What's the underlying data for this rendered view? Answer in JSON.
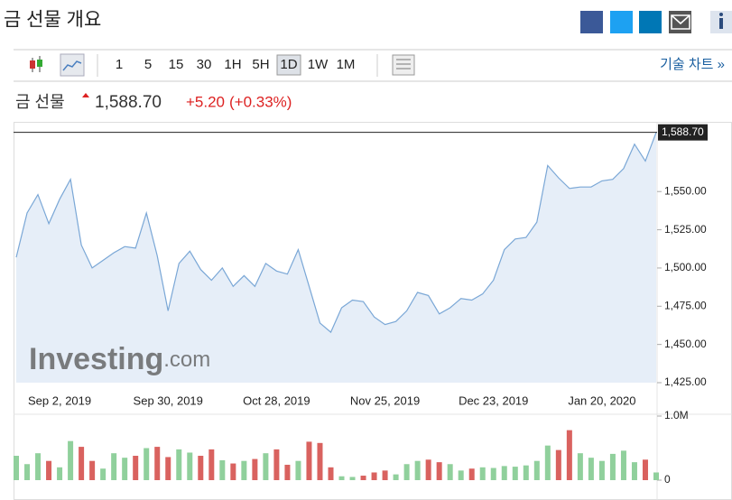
{
  "header": {
    "title": "금 선물 개요"
  },
  "toolbar": {
    "intervals": [
      "1",
      "5",
      "15",
      "30",
      "1H",
      "5H",
      "1D",
      "1W",
      "1M"
    ],
    "selected": "1D",
    "link": "기술 차트 »"
  },
  "quote": {
    "name": "금 선물",
    "price": "1,588.70",
    "change": "+5.20",
    "change_pct": "(+0.33%)"
  },
  "watermark": {
    "brand": "Investing",
    "domain": ".com"
  },
  "chart_data": {
    "type": "line",
    "categories": [
      null,
      null,
      null,
      null,
      "Sep 2, 2019",
      null,
      null,
      null,
      null,
      null,
      null,
      null,
      null,
      null,
      "Sep 30, 2019",
      null,
      null,
      null,
      null,
      null,
      null,
      null,
      null,
      null,
      "Oct 28, 2019",
      null,
      null,
      null,
      null,
      null,
      null,
      null,
      null,
      null,
      "Nov 25, 2019",
      null,
      null,
      null,
      null,
      null,
      null,
      null,
      null,
      null,
      "Dec 23, 2019",
      null,
      null,
      null,
      null,
      null,
      null,
      null,
      null,
      null,
      "Jan 20, 2020",
      null,
      null,
      null,
      null,
      null
    ],
    "values": [
      1507,
      1536,
      1548,
      1529,
      1545,
      1558,
      1515,
      1500,
      1505,
      1510,
      1514,
      1513,
      1536,
      1508,
      1472,
      1503,
      1511,
      1499,
      1492,
      1500,
      1488,
      1495,
      1488,
      1503,
      1498,
      1496,
      1512,
      1488,
      1464,
      1458,
      1474,
      1479,
      1478,
      1468,
      1463,
      1465,
      1472,
      1484,
      1482,
      1470,
      1474,
      1480,
      1479,
      1483,
      1492,
      1512,
      1519,
      1520,
      1530,
      1567,
      1559,
      1552,
      1553,
      1553,
      1557,
      1558,
      1565,
      1581,
      1570,
      1588.7
    ],
    "color": "#7aa7d6",
    "ylim": [
      1425,
      1595
    ],
    "yticks": [
      {
        "value": 1425,
        "label": "1,425.00"
      },
      {
        "value": 1450,
        "label": "1,450.00"
      },
      {
        "value": 1475,
        "label": "1,475.00"
      },
      {
        "value": 1500,
        "label": "1,500.00"
      },
      {
        "value": 1525,
        "label": "1,525.00"
      },
      {
        "value": 1550,
        "label": "1,550.00"
      }
    ],
    "volume": [
      380000,
      250000,
      420000,
      300000,
      200000,
      610000,
      520000,
      300000,
      180000,
      420000,
      350000,
      380000,
      500000,
      520000,
      360000,
      480000,
      430000,
      380000,
      480000,
      310000,
      260000,
      300000,
      330000,
      420000,
      480000,
      240000,
      300000,
      600000,
      580000,
      200000,
      60000,
      50000,
      70000,
      120000,
      150000,
      90000,
      250000,
      300000,
      320000,
      280000,
      250000,
      150000,
      180000,
      200000,
      190000,
      220000,
      210000,
      230000,
      300000,
      540000,
      470000,
      780000,
      420000,
      350000,
      300000,
      410000,
      460000,
      280000,
      320000,
      120000
    ],
    "volume_ylim": [
      0,
      1000000
    ],
    "volume_yticks": [
      0,
      {
        "value": 1000000,
        "label": "1.0M"
      }
    ],
    "up_color": "#90d09c",
    "down_color": "#d9625f"
  }
}
